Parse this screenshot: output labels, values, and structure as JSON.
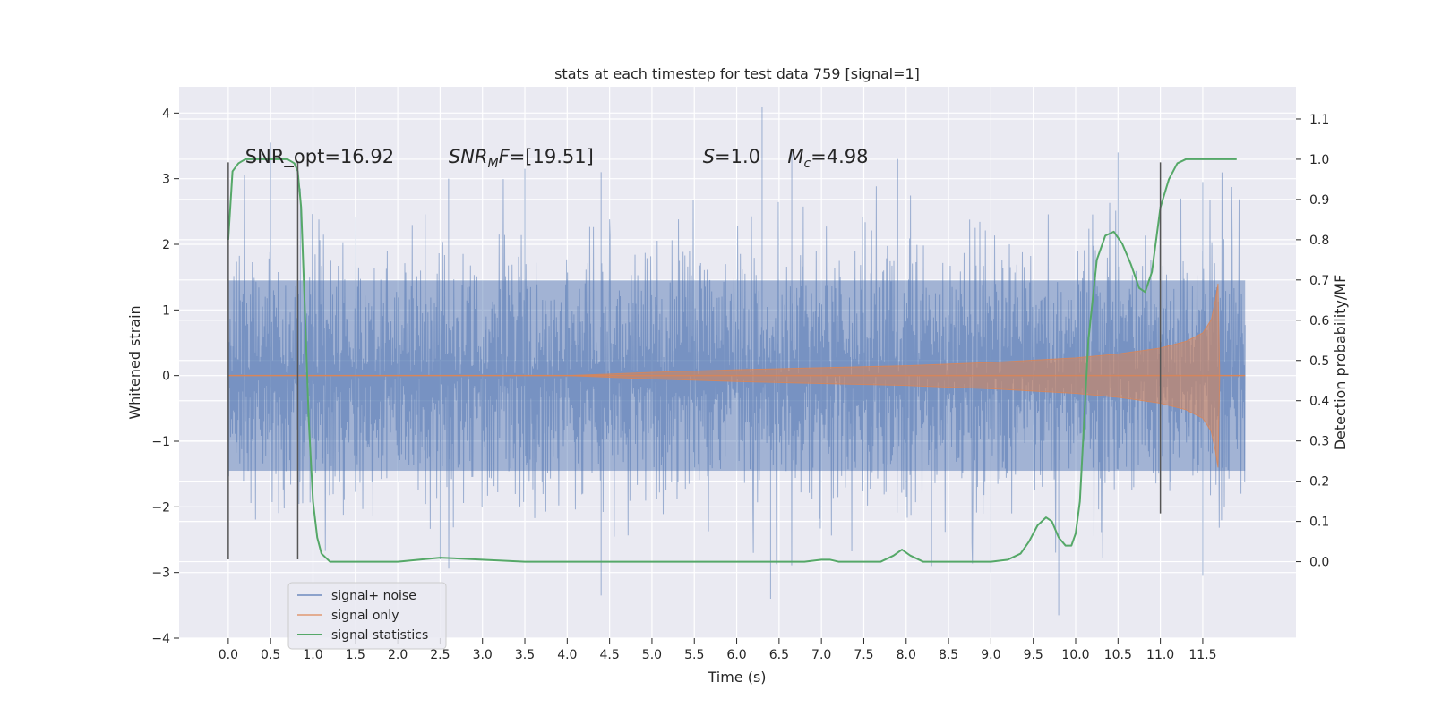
{
  "chart_data": {
    "type": "line",
    "title": "stats at each timestep for test data 759 [signal=1]",
    "xlabel": "Time (s)",
    "ylabel_left": "Whitened strain",
    "ylabel_right": "Detection probability/MF",
    "xlim": [
      -0.58,
      12.6
    ],
    "ylim_left": [
      -4.0,
      4.4
    ],
    "ylim_right": [
      -0.19,
      1.18
    ],
    "xticks": [
      0.0,
      0.5,
      1.0,
      1.5,
      2.0,
      2.5,
      3.0,
      3.5,
      4.0,
      4.5,
      5.0,
      5.5,
      6.0,
      6.5,
      7.0,
      7.5,
      8.0,
      8.5,
      9.0,
      9.5,
      10.0,
      10.5,
      11.0,
      11.5
    ],
    "xtick_labels": [
      "0.0",
      "0.5",
      "1.0",
      "1.5",
      "2.0",
      "2.5",
      "3.0",
      "3.5",
      "4.0",
      "4.5",
      "5.0",
      "5.5",
      "6.0",
      "6.5",
      "7.0",
      "7.5",
      "8.0",
      "8.5",
      "9.0",
      "9.5",
      "10.0",
      "10.5",
      "11.0",
      "11.5"
    ],
    "yticks_left": [
      -4,
      -3,
      -2,
      -1,
      0,
      1,
      2,
      3,
      4
    ],
    "ytick_labels_left": [
      "−4",
      "−3",
      "−2",
      "−1",
      "0",
      "1",
      "2",
      "3",
      "4"
    ],
    "yticks_right": [
      0.0,
      0.1,
      0.2,
      0.3,
      0.4,
      0.5,
      0.6,
      0.7,
      0.8,
      0.9,
      1.0,
      1.1
    ],
    "ytick_labels_right": [
      "0.0",
      "0.1",
      "0.2",
      "0.3",
      "0.4",
      "0.5",
      "0.6",
      "0.7",
      "0.8",
      "0.9",
      "1.0",
      "1.1"
    ],
    "grid": true,
    "legend_position": "lower-left",
    "annotations": [
      {
        "text": "SNR_opt=16.92",
        "x": 0.2,
        "y": 3.35
      },
      {
        "text": "SNR_MF=[19.51]",
        "x": 2.6,
        "y": 3.35
      },
      {
        "text": "S=1.0",
        "x": 5.6,
        "y": 3.35
      },
      {
        "text": "M_c=4.98",
        "x": 6.6,
        "y": 3.35
      }
    ],
    "vertical_markers": [
      {
        "x": 0.0,
        "ymin": -2.8,
        "ymax": 3.25
      },
      {
        "x": 0.82,
        "ymin": -2.8,
        "ymax": 3.25
      },
      {
        "x": 11.0,
        "ymin": -2.1,
        "ymax": 3.25
      }
    ],
    "series": [
      {
        "name": "signal+ noise",
        "color": "#4c72b0",
        "style": "noise",
        "x_range": [
          0.0,
          12.0
        ],
        "typical_envelope": [
          -1.45,
          1.45
        ],
        "peaks_high": [
          [
            0.5,
            3.55
          ],
          [
            0.85,
            2.85
          ],
          [
            2.6,
            3.0
          ],
          [
            3.5,
            3.15
          ],
          [
            4.4,
            3.1
          ],
          [
            6.3,
            4.1
          ],
          [
            6.65,
            3.4
          ],
          [
            7.9,
            3.3
          ],
          [
            10.5,
            3.4
          ],
          [
            11.5,
            2.95
          ]
        ],
        "peaks_low": [
          [
            4.4,
            -3.35
          ],
          [
            6.4,
            -3.4
          ],
          [
            9.8,
            -3.65
          ],
          [
            9.0,
            -3.0
          ],
          [
            11.5,
            -3.05
          ],
          [
            2.5,
            -2.8
          ],
          [
            8.3,
            -2.9
          ]
        ]
      },
      {
        "name": "signal only",
        "color": "#dd8452",
        "style": "chirp",
        "x": [
          0.0,
          4.0,
          5.0,
          6.0,
          7.0,
          8.0,
          9.0,
          10.0,
          10.5,
          11.0,
          11.3,
          11.5,
          11.6,
          11.65,
          11.68,
          11.7,
          12.0
        ],
        "envelope": [
          0.0,
          0.0,
          0.05,
          0.09,
          0.12,
          0.15,
          0.2,
          0.27,
          0.33,
          0.42,
          0.52,
          0.65,
          0.85,
          1.15,
          1.4,
          0.0,
          0.0
        ]
      },
      {
        "name": "signal statistics",
        "color": "#55a868",
        "axis": "right",
        "x": [
          0.0,
          0.05,
          0.12,
          0.2,
          0.3,
          0.45,
          0.6,
          0.7,
          0.78,
          0.82,
          0.86,
          0.9,
          0.95,
          1.0,
          1.05,
          1.1,
          1.2,
          1.5,
          2.0,
          2.5,
          3.0,
          3.5,
          4.0,
          5.0,
          6.0,
          6.8,
          7.0,
          7.1,
          7.2,
          7.7,
          7.85,
          7.95,
          8.05,
          8.2,
          8.5,
          9.0,
          9.2,
          9.35,
          9.45,
          9.55,
          9.65,
          9.72,
          9.8,
          9.88,
          9.95,
          10.0,
          10.05,
          10.1,
          10.15,
          10.25,
          10.35,
          10.45,
          10.55,
          10.65,
          10.75,
          10.82,
          10.9,
          10.95,
          11.0,
          11.1,
          11.2,
          11.3,
          11.5,
          11.9
        ],
        "values": [
          0.8,
          0.97,
          0.99,
          1.0,
          1.0,
          1.0,
          1.0,
          1.0,
          0.99,
          0.97,
          0.88,
          0.65,
          0.35,
          0.15,
          0.06,
          0.02,
          0.0,
          0.0,
          0.0,
          0.01,
          0.005,
          0.0,
          0.0,
          0.0,
          0.0,
          0.0,
          0.005,
          0.005,
          0.0,
          0.0,
          0.015,
          0.03,
          0.015,
          0.0,
          0.0,
          0.0,
          0.005,
          0.02,
          0.05,
          0.09,
          0.11,
          0.1,
          0.06,
          0.04,
          0.04,
          0.07,
          0.15,
          0.35,
          0.55,
          0.75,
          0.81,
          0.82,
          0.79,
          0.74,
          0.68,
          0.67,
          0.72,
          0.8,
          0.88,
          0.95,
          0.99,
          1.0,
          1.0,
          1.0
        ]
      }
    ]
  }
}
